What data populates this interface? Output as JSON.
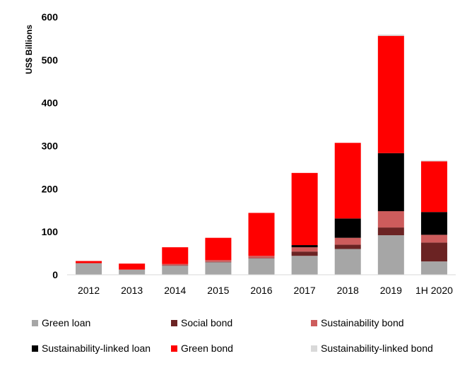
{
  "chart_data": {
    "type": "bar",
    "stacked": true,
    "ylabel": "US$ Billions",
    "ylim": [
      0,
      600
    ],
    "yticks": [
      0,
      100,
      200,
      300,
      400,
      500,
      600
    ],
    "grid": false,
    "legend_position": "bottom",
    "categories": [
      "2012",
      "2013",
      "2014",
      "2015",
      "2016",
      "2017",
      "2018",
      "2019",
      "1H 2020"
    ],
    "series": [
      {
        "name": "Green loan",
        "color": "#a6a6a6",
        "values": [
          27,
          12,
          21,
          29,
          38,
          44,
          60,
          92,
          31
        ]
      },
      {
        "name": "Social bond",
        "color": "#6b2323",
        "values": [
          0,
          0,
          1,
          1,
          1,
          10,
          10,
          18,
          44
        ]
      },
      {
        "name": "Sustainability bond",
        "color": "#cd5c5c",
        "values": [
          0,
          0,
          3,
          4,
          5,
          10,
          16,
          38,
          18
        ]
      },
      {
        "name": "Sustainability-linked loan",
        "color": "#000000",
        "values": [
          0,
          0,
          0,
          0,
          0,
          5,
          45,
          135,
          53
        ]
      },
      {
        "name": "Green bond",
        "color": "#ff0000",
        "values": [
          5,
          14,
          39,
          52,
          100,
          168,
          176,
          273,
          118
        ]
      },
      {
        "name": "Sustainability-linked bond",
        "color": "#d9d9d9",
        "values": [
          0,
          0,
          0,
          0,
          0,
          0,
          0,
          3,
          2
        ]
      }
    ]
  }
}
